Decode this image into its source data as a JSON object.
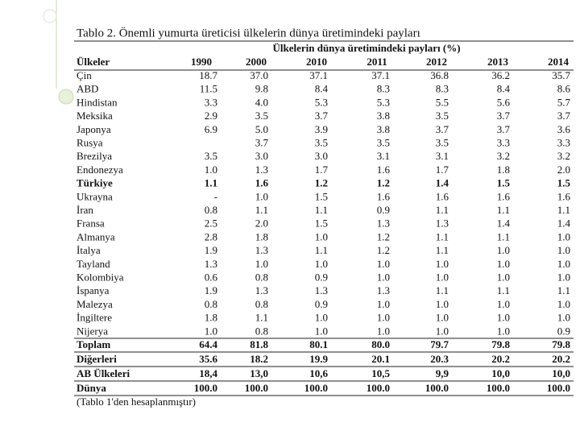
{
  "table": {
    "title": "Tablo 2. Önemli yumurta üreticisi ülkelerin dünya üretimindeki payları",
    "group_header": "Ülkelerin dünya üretimindeki payları (%)",
    "columns": [
      "Ülkeler",
      "1990",
      "2000",
      "2010",
      "2011",
      "2012",
      "2013",
      "2014"
    ],
    "rows": [
      [
        "Çin",
        "18.7",
        "37.0",
        "37.1",
        "37.1",
        "36.8",
        "36.2",
        "35.7"
      ],
      [
        "ABD",
        "11.5",
        "9.8",
        "8.4",
        "8.3",
        "8.3",
        "8.4",
        "8.6"
      ],
      [
        "Hindistan",
        "3.3",
        "4.0",
        "5.3",
        "5.3",
        "5.5",
        "5.6",
        "5.7"
      ],
      [
        "Meksika",
        "2.9",
        "3.5",
        "3.7",
        "3.8",
        "3.5",
        "3.7",
        "3.7"
      ],
      [
        "Japonya",
        "6.9",
        "5.0",
        "3.9",
        "3.8",
        "3.7",
        "3.7",
        "3.6"
      ],
      [
        "Rusya",
        null,
        "3.7",
        "3.5",
        "3.5",
        "3.5",
        "3.3",
        "3.3"
      ],
      [
        "Brezilya",
        "3.5",
        "3.0",
        "3.0",
        "3.1",
        "3.1",
        "3.2",
        "3.2"
      ],
      [
        "Endonezya",
        "1.0",
        "1.3",
        "1.7",
        "1.6",
        "1.7",
        "1.8",
        "2.0"
      ],
      [
        "Türkiye",
        "1.1",
        "1.6",
        "1.2",
        "1.2",
        "1.4",
        "1.5",
        "1.5"
      ],
      [
        "Ukrayna",
        "-",
        "1.0",
        "1.5",
        "1.6",
        "1.6",
        "1.6",
        "1.6"
      ],
      [
        "İran",
        "0.8",
        "1.1",
        "1.1",
        "0.9",
        "1.1",
        "1.1",
        "1.1"
      ],
      [
        "Fransa",
        "2.5",
        "2.0",
        "1.5",
        "1.3",
        "1.3",
        "1.4",
        "1.4"
      ],
      [
        "Almanya",
        "2.8",
        "1.8",
        "1.0",
        "1.2",
        "1.1",
        "1.1",
        "1.0"
      ],
      [
        "İtalya",
        "1.9",
        "1.3",
        "1.1",
        "1.2",
        "1.1",
        "1.0",
        "1.0"
      ],
      [
        "Tayland",
        "1.3",
        "1.0",
        "1.0",
        "1.0",
        "1.0",
        "1.0",
        "1.0"
      ],
      [
        "Kolombiya",
        "0.6",
        "0.8",
        "0.9",
        "1.0",
        "1.0",
        "1.0",
        "1.0"
      ],
      [
        "İspanya",
        "1.9",
        "1.3",
        "1.3",
        "1.3",
        "1.1",
        "1.1",
        "1.1"
      ],
      [
        "Malezya",
        "0.8",
        "0.8",
        "0.9",
        "1.0",
        "1.0",
        "1.0",
        "1.0"
      ],
      [
        "İngiltere",
        "1.8",
        "1.1",
        "1.0",
        "1.0",
        "1.0",
        "1.0",
        "1.0"
      ],
      [
        "Nijerya",
        "1.0",
        "0.8",
        "1.0",
        "1.0",
        "1.0",
        "1.0",
        "0.9"
      ]
    ],
    "summary_rows": [
      [
        "Toplam",
        "64.4",
        "81.8",
        "80.1",
        "80.0",
        "79.7",
        "79.8",
        "79.8"
      ],
      [
        "Diğerleri",
        "35.6",
        "18.2",
        "19.9",
        "20.1",
        "20.3",
        "20.2",
        "20.2"
      ],
      [
        "AB Ülkeleri",
        "18,4",
        "13,0",
        "10,6",
        "10,5",
        "9,9",
        "10,0",
        "10,0"
      ],
      [
        "Dünya",
        "100.0",
        "100.0",
        "100.0",
        "100.0",
        "100.0",
        "100.0",
        "100.0"
      ]
    ],
    "bold_row": 8,
    "note": "(Tablo 1'den hesaplanmıştır)"
  }
}
